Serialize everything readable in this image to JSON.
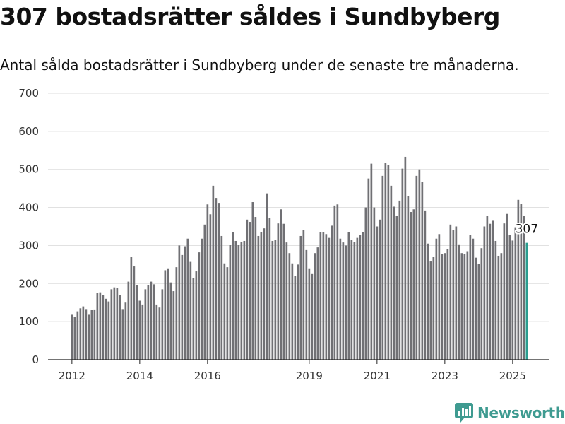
{
  "title": "307 bostadsrätter såldes i Sundbyberg",
  "subtitle": "Antal sålda bostadsrätter i Sundbyberg under de senaste tre månaderna.",
  "brand": {
    "name": "Newsworthy",
    "color": "#3f9b91",
    "icon": "bar-chart-logo-icon"
  },
  "colors": {
    "bar": "#707074",
    "highlight": "#2a9d8f",
    "grid": "#dddddd"
  },
  "chart_data": {
    "type": "bar",
    "ylim": [
      0,
      700
    ],
    "yticks": [
      0,
      100,
      200,
      300,
      400,
      500,
      600,
      700
    ],
    "xticks": [
      {
        "label": "2012",
        "index": 0
      },
      {
        "label": "2014",
        "index": 24
      },
      {
        "label": "2016",
        "index": 48
      },
      {
        "label": "2019",
        "index": 84
      },
      {
        "label": "2021",
        "index": 108
      },
      {
        "label": "2023",
        "index": 132
      },
      {
        "label": "2025",
        "index": 156
      }
    ],
    "grid": true,
    "highlight_index": 161,
    "data_label": {
      "index": 161,
      "text": "307"
    },
    "values": [
      118,
      113,
      127,
      135,
      140,
      133,
      118,
      130,
      132,
      175,
      177,
      170,
      160,
      153,
      185,
      190,
      188,
      170,
      133,
      150,
      205,
      270,
      245,
      195,
      155,
      145,
      185,
      195,
      205,
      198,
      145,
      137,
      185,
      235,
      240,
      203,
      180,
      243,
      300,
      275,
      298,
      318,
      257,
      215,
      232,
      282,
      318,
      355,
      408,
      382,
      457,
      425,
      412,
      325,
      253,
      243,
      302,
      335,
      312,
      302,
      310,
      312,
      368,
      362,
      414,
      375,
      325,
      335,
      345,
      437,
      372,
      312,
      315,
      358,
      395,
      357,
      308,
      280,
      253,
      220,
      250,
      325,
      340,
      288,
      240,
      225,
      280,
      295,
      335,
      335,
      330,
      320,
      352,
      405,
      408,
      318,
      308,
      300,
      336,
      315,
      310,
      320,
      328,
      335,
      400,
      476,
      515,
      400,
      350,
      368,
      483,
      517,
      512,
      457,
      402,
      378,
      418,
      502,
      533,
      430,
      388,
      395,
      483,
      500,
      467,
      392,
      305,
      258,
      270,
      318,
      330,
      278,
      280,
      290,
      355,
      340,
      350,
      303,
      280,
      278,
      285,
      328,
      318,
      268,
      252,
      293,
      350,
      378,
      357,
      365,
      312,
      273,
      280,
      358,
      383,
      327,
      313,
      348,
      420,
      410,
      377,
      307
    ]
  }
}
